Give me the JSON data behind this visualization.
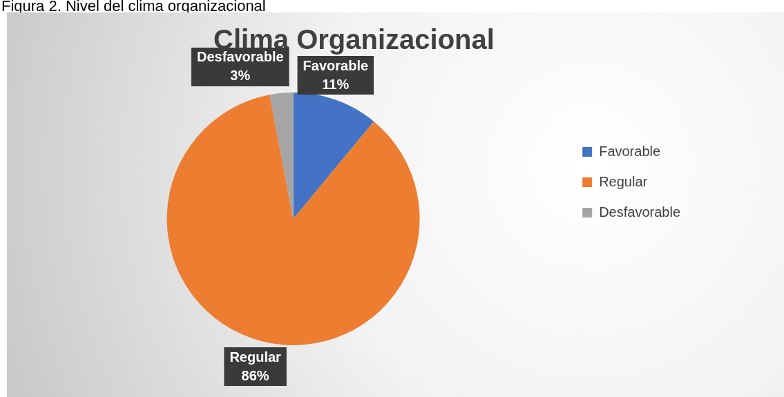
{
  "chart_data": {
    "type": "pie",
    "title": "Clima Organizacional",
    "annotations": [
      "Figura 2. Nivel del clima organizacional"
    ],
    "categories": [
      "Favorable",
      "Regular",
      "Desfavorable"
    ],
    "values": [
      11,
      86,
      3
    ],
    "colors": [
      "#4472c4",
      "#ed7d31",
      "#a5a5a5"
    ],
    "value_labels": [
      "11%",
      "86%",
      "3%"
    ],
    "legend": "right"
  }
}
